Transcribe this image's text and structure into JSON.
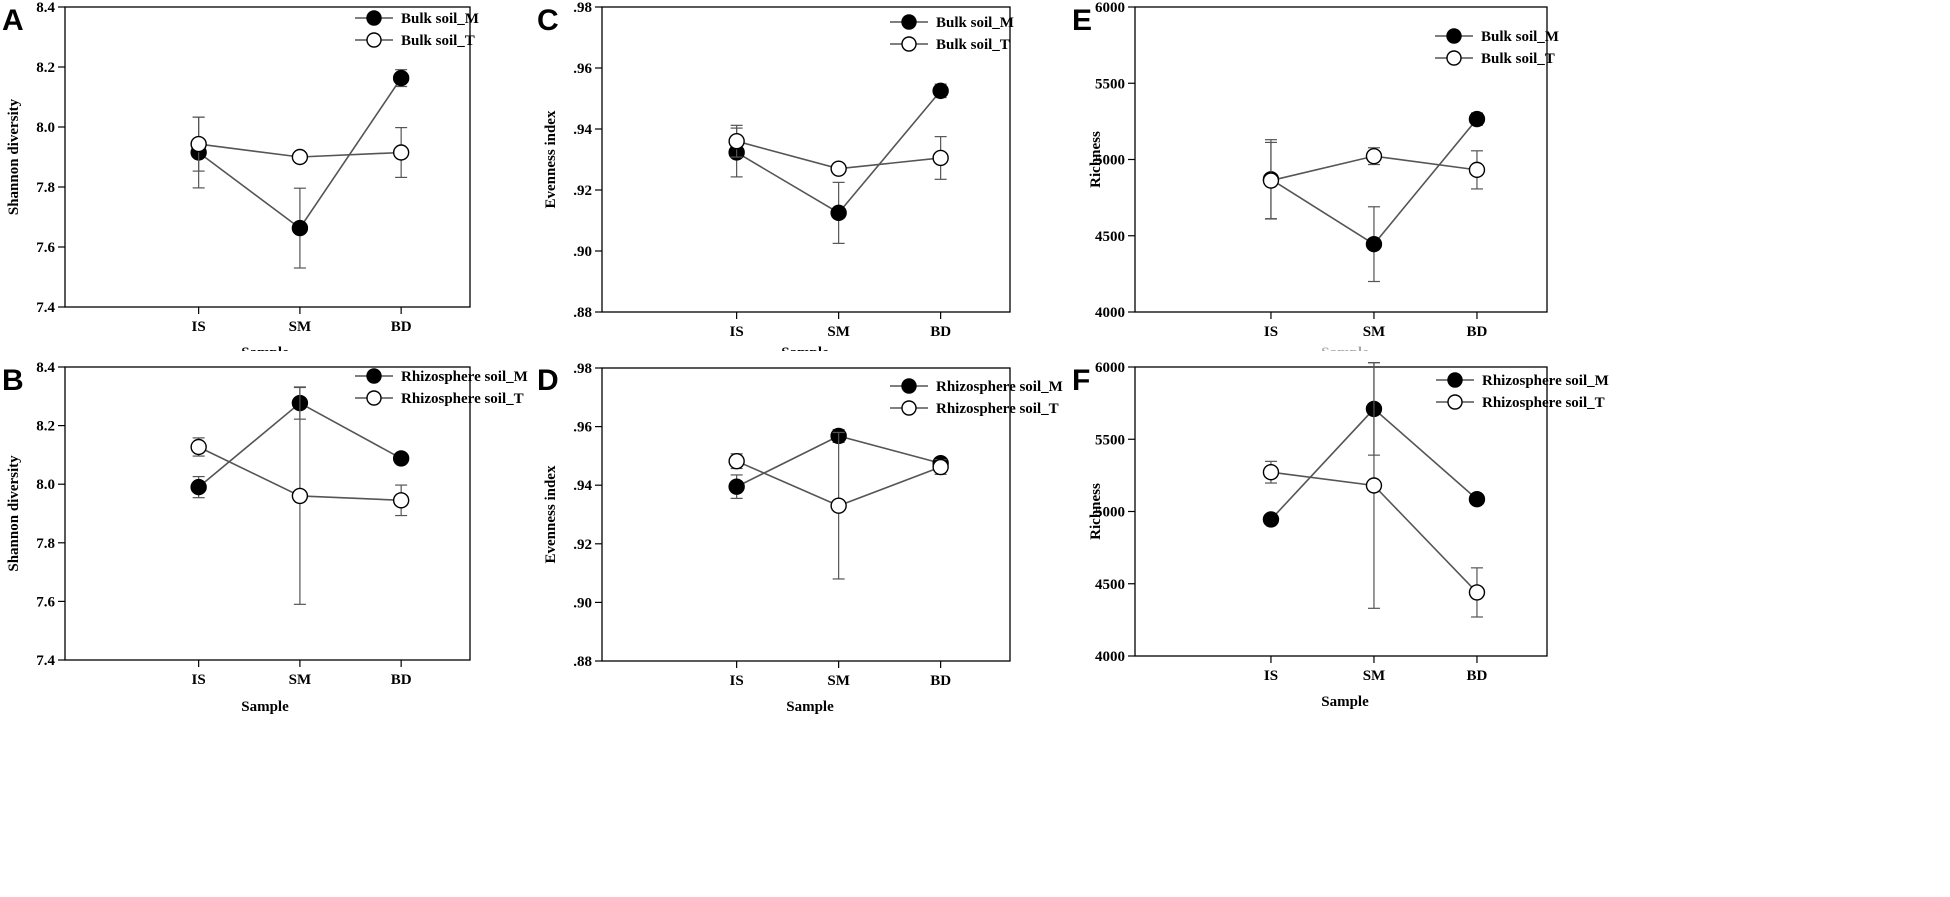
{
  "figure": {
    "background": "#ffffff",
    "line_color": "#555555"
  },
  "chart_data": [
    {
      "panel": "A",
      "type": "line",
      "categories": [
        "IS",
        "SM",
        "BD"
      ],
      "xlabel": "Sample",
      "ylabel": "Shannon diversity",
      "ylim": [
        7.4,
        8.4
      ],
      "yticks": [
        "7.4",
        "7.6",
        "7.8",
        "8.0",
        "8.2",
        "8.4"
      ],
      "legend_position": "top-right",
      "series": [
        {
          "name": "Bulk soil_M",
          "marker": "filled",
          "values": [
            7.915,
            7.663,
            8.163
          ],
          "errors": [
            0.118,
            0.133,
            0.028
          ]
        },
        {
          "name": "Bulk soil_T",
          "marker": "open",
          "values": [
            7.943,
            7.9,
            7.915
          ],
          "errors": [
            0.09,
            0.005,
            0.083
          ]
        }
      ]
    },
    {
      "panel": "B",
      "type": "line",
      "categories": [
        "IS",
        "SM",
        "BD"
      ],
      "xlabel": "Sample",
      "ylabel": "Shannon diversity",
      "ylim": [
        7.4,
        8.4
      ],
      "yticks": [
        "7.4",
        "7.6",
        "7.8",
        "8.0",
        "8.2",
        "8.4"
      ],
      "legend_position": "top-right",
      "series": [
        {
          "name": "Rhizosphere soil_M",
          "marker": "filled",
          "values": [
            7.99,
            8.277,
            8.088
          ],
          "errors": [
            0.036,
            0.055,
            0.008
          ]
        },
        {
          "name": "Rhizosphere soil_T",
          "marker": "open",
          "values": [
            8.127,
            7.96,
            7.945
          ],
          "errors": [
            0.031,
            0.37,
            0.052
          ]
        }
      ]
    },
    {
      "panel": "C",
      "type": "line",
      "categories": [
        "IS",
        "SM",
        "BD"
      ],
      "xlabel": "Sample",
      "ylabel": "Evenness index",
      "ylim": [
        0.88,
        0.98
      ],
      "yticks": [
        ".88",
        ".90",
        ".92",
        ".94",
        ".96",
        ".98"
      ],
      "legend_position": "top-right",
      "series": [
        {
          "name": "Bulk soil_M",
          "marker": "filled",
          "values": [
            0.9323,
            0.9125,
            0.9525
          ],
          "errors": [
            0.008,
            0.01,
            0.0022
          ]
        },
        {
          "name": "Bulk soil_T",
          "marker": "open",
          "values": [
            0.936,
            0.927,
            0.9305
          ],
          "errors": [
            0.0052,
            0.0012,
            0.007
          ]
        }
      ]
    },
    {
      "panel": "D",
      "type": "line",
      "categories": [
        "IS",
        "SM",
        "BD"
      ],
      "xlabel": "Sample",
      "ylabel": "Evenness index",
      "ylim": [
        0.88,
        0.98
      ],
      "yticks": [
        ".88",
        ".90",
        ".92",
        ".94",
        ".96",
        ".98"
      ],
      "legend_position": "top-right",
      "series": [
        {
          "name": "Rhizosphere soil_M",
          "marker": "filled",
          "values": [
            0.9395,
            0.9568,
            0.9475
          ],
          "errors": [
            0.004,
            0.0022,
            0.001
          ]
        },
        {
          "name": "Rhizosphere soil_T",
          "marker": "open",
          "values": [
            0.9482,
            0.933,
            0.9462
          ],
          "errors": [
            0.0025,
            0.025,
            0.0025
          ]
        }
      ]
    },
    {
      "panel": "E",
      "type": "line",
      "categories": [
        "IS",
        "SM",
        "BD"
      ],
      "xlabel": "Sample",
      "ylabel": "Richness",
      "ylim": [
        4000,
        6000
      ],
      "yticks": [
        "4000",
        "4500",
        "5000",
        "5500",
        "6000"
      ],
      "legend_position": "top-right",
      "series": [
        {
          "name": "Bulk soil_M",
          "marker": "filled",
          "values": [
            4870,
            4445,
            5265
          ],
          "errors": [
            260,
            245,
            40
          ]
        },
        {
          "name": "Bulk soil_T",
          "marker": "open",
          "values": [
            4862,
            5022,
            4932
          ],
          "errors": [
            250,
            55,
            125
          ]
        }
      ]
    },
    {
      "panel": "F",
      "type": "line",
      "categories": [
        "IS",
        "SM",
        "BD"
      ],
      "xlabel": "Sample",
      "ylabel": "Richness",
      "ylim": [
        4000,
        6000
      ],
      "yticks": [
        "4000",
        "4500",
        "5000",
        "5500",
        "6000"
      ],
      "legend_position": "top-right",
      "series": [
        {
          "name": "Rhizosphere soil_M",
          "marker": "filled",
          "values": [
            4945,
            5710,
            5085
          ],
          "errors": [
            0,
            320,
            0
          ]
        },
        {
          "name": "Rhizosphere soil_T",
          "marker": "open",
          "values": [
            5272,
            5180,
            4440
          ],
          "errors": [
            75,
            850,
            170
          ]
        }
      ]
    }
  ]
}
